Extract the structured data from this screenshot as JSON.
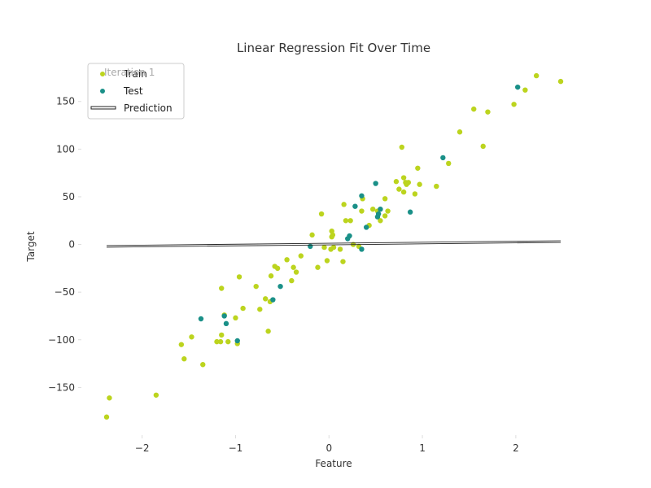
{
  "chart_data": {
    "type": "scatter",
    "title": "Linear Regression Fit Over Time",
    "xlabel": "Feature",
    "ylabel": "Target",
    "xlim": [
      -2.65,
      2.75
    ],
    "ylim": [
      -200,
      195
    ],
    "x_ticks": [
      -2,
      -1,
      0,
      1,
      2
    ],
    "y_ticks": [
      -150,
      -100,
      -50,
      0,
      50,
      100,
      150
    ],
    "x_tick_labels": [
      "−2",
      "−1",
      "0",
      "1",
      "2"
    ],
    "y_tick_labels": [
      "−150",
      "−100",
      "−50",
      "0",
      "50",
      "100",
      "150"
    ],
    "grid": false,
    "legend_position": "top-left",
    "annotation": "Iteration 1",
    "series": [
      {
        "name": "Train",
        "color": "#bcd41e",
        "points": [
          [
            -2.38,
            -181
          ],
          [
            -2.35,
            -161
          ],
          [
            -1.85,
            -158
          ],
          [
            -1.58,
            -105
          ],
          [
            -1.55,
            -120
          ],
          [
            -1.47,
            -97
          ],
          [
            -1.35,
            -126
          ],
          [
            -1.2,
            -102
          ],
          [
            -1.16,
            -102
          ],
          [
            -1.15,
            -46
          ],
          [
            -1.15,
            -95
          ],
          [
            -1.12,
            -74
          ],
          [
            -1.08,
            -102
          ],
          [
            -1.0,
            -77
          ],
          [
            -0.98,
            -104
          ],
          [
            -0.96,
            -34
          ],
          [
            -0.92,
            -67
          ],
          [
            -0.78,
            -44
          ],
          [
            -0.74,
            -68
          ],
          [
            -0.68,
            -57
          ],
          [
            -0.65,
            -91
          ],
          [
            -0.63,
            -60
          ],
          [
            -0.62,
            -33
          ],
          [
            -0.58,
            -23
          ],
          [
            -0.55,
            -25
          ],
          [
            -0.45,
            -16
          ],
          [
            -0.4,
            -38
          ],
          [
            -0.38,
            -24
          ],
          [
            -0.35,
            -29
          ],
          [
            -0.3,
            -12
          ],
          [
            -0.18,
            10
          ],
          [
            -0.12,
            -24
          ],
          [
            -0.08,
            32
          ],
          [
            -0.05,
            -3
          ],
          [
            -0.02,
            -17
          ],
          [
            0.02,
            -5
          ],
          [
            0.03,
            8
          ],
          [
            0.03,
            14
          ],
          [
            0.04,
            10
          ],
          [
            0.05,
            -3
          ],
          [
            0.12,
            -5
          ],
          [
            0.15,
            -18
          ],
          [
            0.16,
            42
          ],
          [
            0.18,
            25
          ],
          [
            0.23,
            25
          ],
          [
            0.26,
            0
          ],
          [
            0.32,
            -2
          ],
          [
            0.35,
            35
          ],
          [
            0.36,
            48
          ],
          [
            0.43,
            20
          ],
          [
            0.47,
            37
          ],
          [
            0.52,
            35
          ],
          [
            0.55,
            25
          ],
          [
            0.6,
            30
          ],
          [
            0.6,
            48
          ],
          [
            0.63,
            35
          ],
          [
            0.72,
            66
          ],
          [
            0.75,
            58
          ],
          [
            0.8,
            55
          ],
          [
            0.8,
            70
          ],
          [
            0.82,
            65
          ],
          [
            0.83,
            63
          ],
          [
            0.85,
            65
          ],
          [
            0.92,
            53
          ],
          [
            0.95,
            80
          ],
          [
            0.97,
            63
          ],
          [
            0.78,
            102
          ],
          [
            1.15,
            61
          ],
          [
            1.28,
            85
          ],
          [
            1.4,
            118
          ],
          [
            1.55,
            142
          ],
          [
            1.65,
            103
          ],
          [
            1.7,
            139
          ],
          [
            1.98,
            147
          ],
          [
            2.1,
            162
          ],
          [
            2.22,
            177
          ],
          [
            2.48,
            171
          ]
        ]
      },
      {
        "name": "Test",
        "color": "#1a9088",
        "points": [
          [
            -1.37,
            -78
          ],
          [
            -1.12,
            -75
          ],
          [
            -1.1,
            -83
          ],
          [
            -0.98,
            -101
          ],
          [
            -0.6,
            -58
          ],
          [
            -0.52,
            -44
          ],
          [
            -0.2,
            -2
          ],
          [
            0.2,
            6
          ],
          [
            0.22,
            9
          ],
          [
            0.28,
            40
          ],
          [
            0.35,
            -5
          ],
          [
            0.35,
            51
          ],
          [
            0.4,
            18
          ],
          [
            0.5,
            64
          ],
          [
            0.52,
            29
          ],
          [
            0.53,
            32
          ],
          [
            0.55,
            37
          ],
          [
            0.87,
            34
          ],
          [
            1.22,
            91
          ],
          [
            2.02,
            165
          ]
        ]
      }
    ],
    "prediction": {
      "name": "Prediction",
      "color": "#222222",
      "x": [
        -2.38,
        2.48
      ],
      "y": [
        -2,
        3
      ]
    }
  }
}
